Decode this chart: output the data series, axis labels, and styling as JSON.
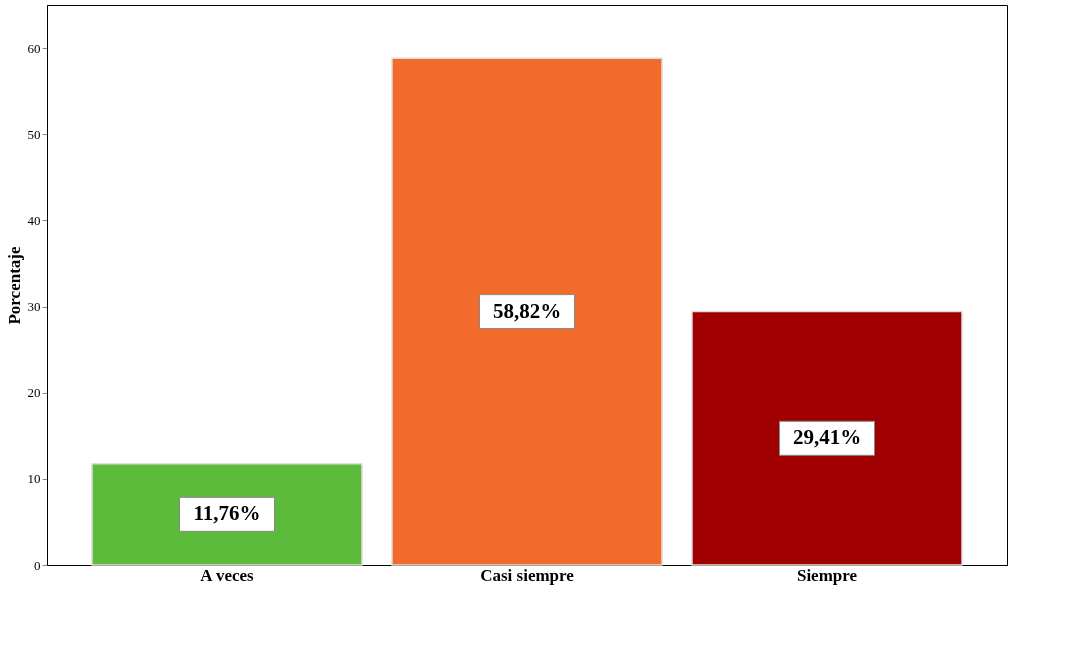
{
  "chart_data": {
    "type": "bar",
    "ylabel": "Porcentaje",
    "categories": [
      "A veces",
      "Casi siempre",
      "Siempre"
    ],
    "values": [
      11.76,
      58.82,
      29.41
    ],
    "colors": [
      "#5dbb3c",
      "#f26b2b",
      "#a00000"
    ],
    "value_labels": [
      "11,76%",
      "58,82%",
      "29,41%"
    ],
    "ylim": [
      0,
      65
    ],
    "yticks": [
      0,
      10,
      20,
      30,
      40,
      50,
      60
    ],
    "grid": false
  }
}
